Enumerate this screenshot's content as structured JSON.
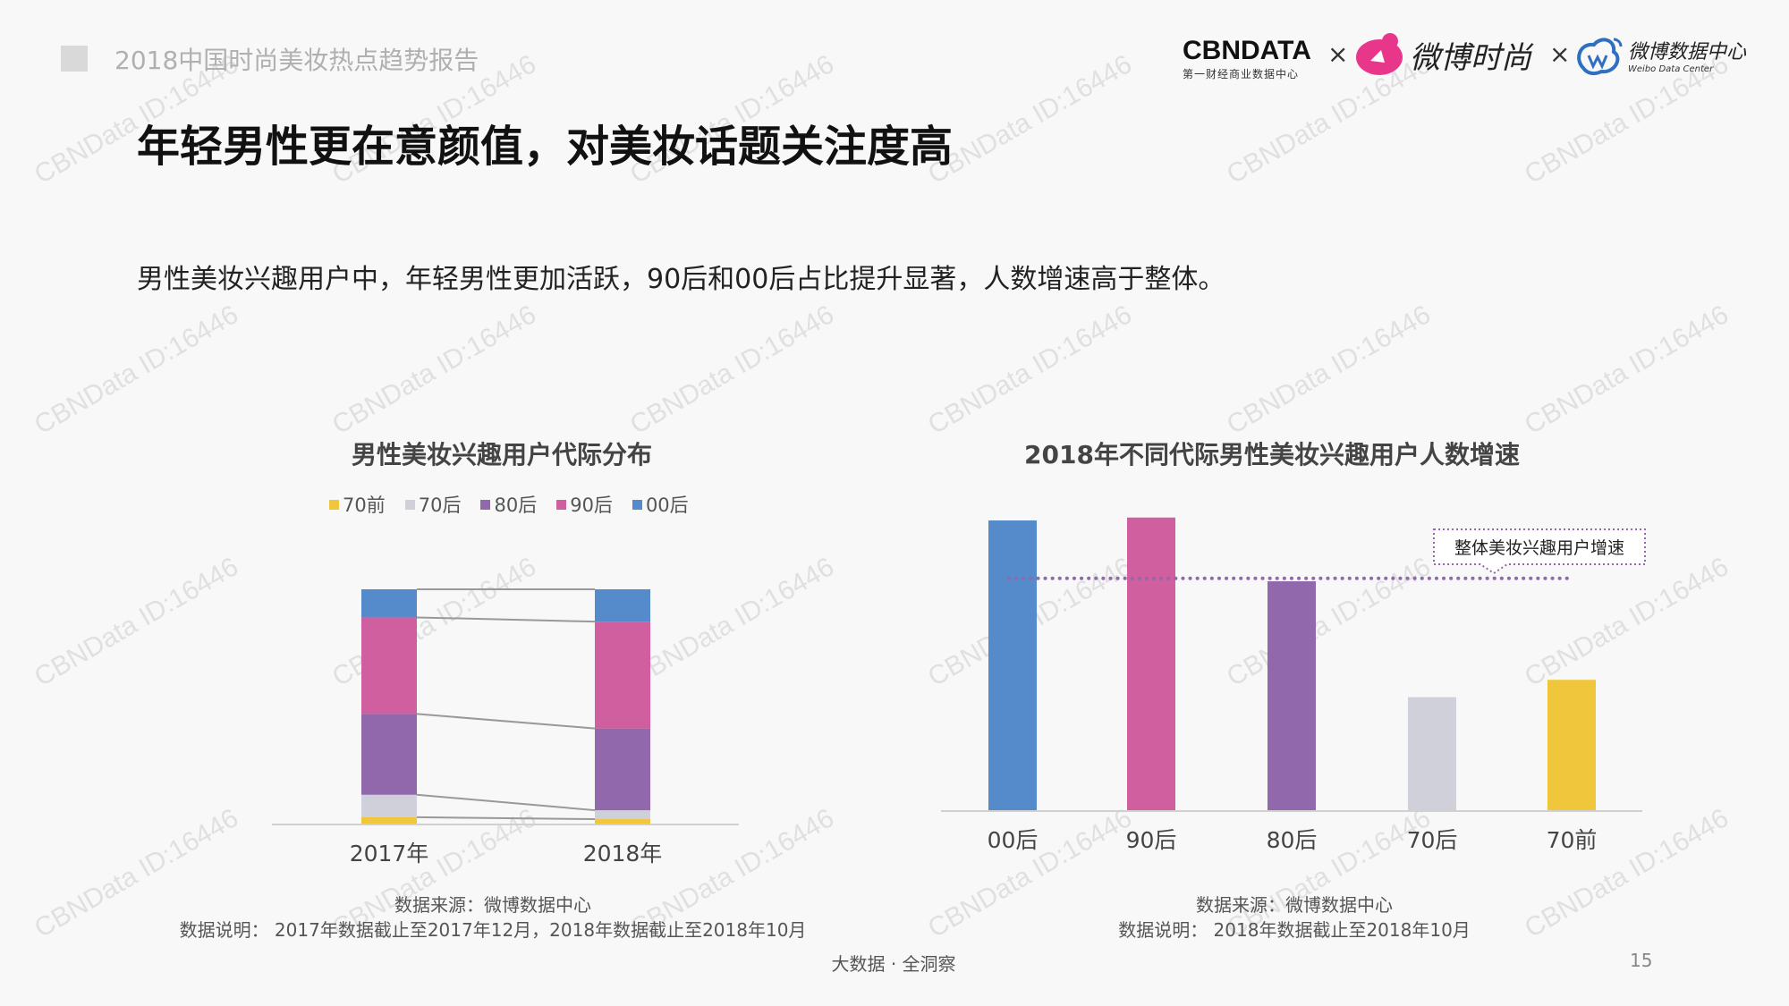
{
  "header": {
    "report_title": "2018中国时尚美妆热点趋势报告"
  },
  "logos": {
    "cbndata": "CBNDATA",
    "cbndata_sub": "第一财经商业数据中心",
    "times": "×",
    "weibo_fashion": "微博时尚",
    "weibo_data": "微博数据中心",
    "weibo_data_sub": "Weibo Data Center"
  },
  "title": "年轻男性更在意颜值，对美妆话题关注度高",
  "subtitle": "男性美妆兴趣用户中，年轻男性更加活跃，90后和00后占比提升显著，人数增速高于整体。",
  "watermark": "CBNData ID:16446",
  "chart_data": [
    {
      "type": "bar",
      "stacked": true,
      "title": "男性美妆兴趣用户代际分布",
      "categories": [
        "2017年",
        "2018年"
      ],
      "series": [
        {
          "name": "70前",
          "color": "#f0c63c",
          "values": [
            2.7,
            1.9
          ]
        },
        {
          "name": "70后",
          "color": "#d0d0da",
          "values": [
            9.6,
            3.8
          ]
        },
        {
          "name": "80后",
          "color": "#9168ab",
          "values": [
            34.5,
            34.9
          ]
        },
        {
          "name": "90后",
          "color": "#d05f9f",
          "values": [
            41.2,
            45.6
          ]
        },
        {
          "name": "00后",
          "color": "#558bcb",
          "values": [
            12.0,
            13.8
          ]
        }
      ],
      "ylim": [
        0,
        100
      ],
      "legend": "top",
      "grid": false,
      "source": "数据来源：微博数据中心",
      "note": "数据说明： 2017年数据截止至2017年12月，2018年数据截止至2018年10月"
    },
    {
      "type": "bar",
      "title": "2018年不同代际男性美妆兴趣用户人数增速",
      "categories": [
        "00后",
        "90后",
        "80后",
        "70后",
        "70前"
      ],
      "colors": [
        "#558bcb",
        "#d05f9f",
        "#9168ab",
        "#d0d0da",
        "#f0c63c"
      ],
      "values": [
        100,
        101,
        79,
        39,
        45
      ],
      "reference_line": {
        "label": "整体美妆兴趣用户增速",
        "value": 80,
        "color": "#9168ab"
      },
      "ylim": [
        0,
        105
      ],
      "grid": false,
      "source": "数据来源：微博数据中心",
      "note": "数据说明： 2018年数据截止至2018年10月"
    }
  ],
  "footer": {
    "tag": "大数据 · 全洞察",
    "page": "15"
  }
}
